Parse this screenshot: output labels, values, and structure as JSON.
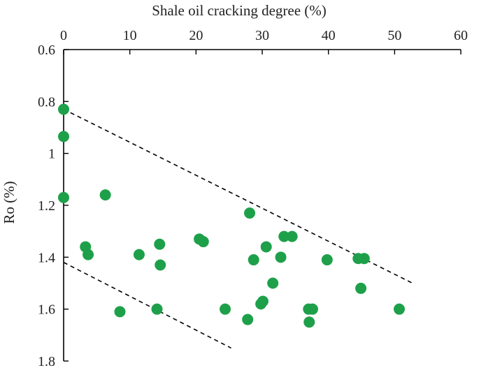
{
  "chart_data": {
    "type": "scatter",
    "xlabel": "Shale oil cracking degree (%)",
    "ylabel": "Ro (%)",
    "xlim": [
      0,
      60
    ],
    "ylim": [
      0.6,
      1.8
    ],
    "y_inverted": true,
    "x_axis_position": "top",
    "x_ticks": [
      0,
      10,
      20,
      30,
      40,
      50,
      60
    ],
    "y_ticks": [
      0.6,
      0.8,
      1,
      1.2,
      1.4,
      1.6,
      1.8
    ],
    "x_tick_labels": [
      "0",
      "10",
      "20",
      "30",
      "40",
      "50",
      "60"
    ],
    "y_tick_labels": [
      "0.6",
      "0.8",
      "1",
      "1.2",
      "1.4",
      "1.6",
      "1.8"
    ],
    "marker_color": "#1ea04a",
    "points": [
      {
        "x": 0,
        "y": 0.83
      },
      {
        "x": 0,
        "y": 0.935
      },
      {
        "x": 0,
        "y": 1.17
      },
      {
        "x": 6.3,
        "y": 1.16
      },
      {
        "x": 3.3,
        "y": 1.36
      },
      {
        "x": 3.7,
        "y": 1.39
      },
      {
        "x": 8.5,
        "y": 1.61
      },
      {
        "x": 11.4,
        "y": 1.39
      },
      {
        "x": 14.5,
        "y": 1.35
      },
      {
        "x": 14.6,
        "y": 1.43
      },
      {
        "x": 14.1,
        "y": 1.6
      },
      {
        "x": 20.5,
        "y": 1.33
      },
      {
        "x": 21.1,
        "y": 1.34
      },
      {
        "x": 24.4,
        "y": 1.6
      },
      {
        "x": 27.8,
        "y": 1.64
      },
      {
        "x": 28.1,
        "y": 1.23
      },
      {
        "x": 28.7,
        "y": 1.41
      },
      {
        "x": 29.8,
        "y": 1.58
      },
      {
        "x": 30.1,
        "y": 1.57
      },
      {
        "x": 30.6,
        "y": 1.36
      },
      {
        "x": 31.6,
        "y": 1.5
      },
      {
        "x": 32.8,
        "y": 1.4
      },
      {
        "x": 33.3,
        "y": 1.32
      },
      {
        "x": 34.5,
        "y": 1.32
      },
      {
        "x": 37.0,
        "y": 1.6
      },
      {
        "x": 37.6,
        "y": 1.6
      },
      {
        "x": 37.1,
        "y": 1.65
      },
      {
        "x": 39.8,
        "y": 1.41
      },
      {
        "x": 44.5,
        "y": 1.405
      },
      {
        "x": 45.4,
        "y": 1.405
      },
      {
        "x": 44.9,
        "y": 1.52
      },
      {
        "x": 50.7,
        "y": 1.6
      }
    ],
    "trend_lines": [
      {
        "x1": 0,
        "y1": 0.83,
        "x2": 52.7,
        "y2": 1.5
      },
      {
        "x1": 0,
        "y1": 1.42,
        "x2": 25.3,
        "y2": 1.75
      }
    ]
  }
}
